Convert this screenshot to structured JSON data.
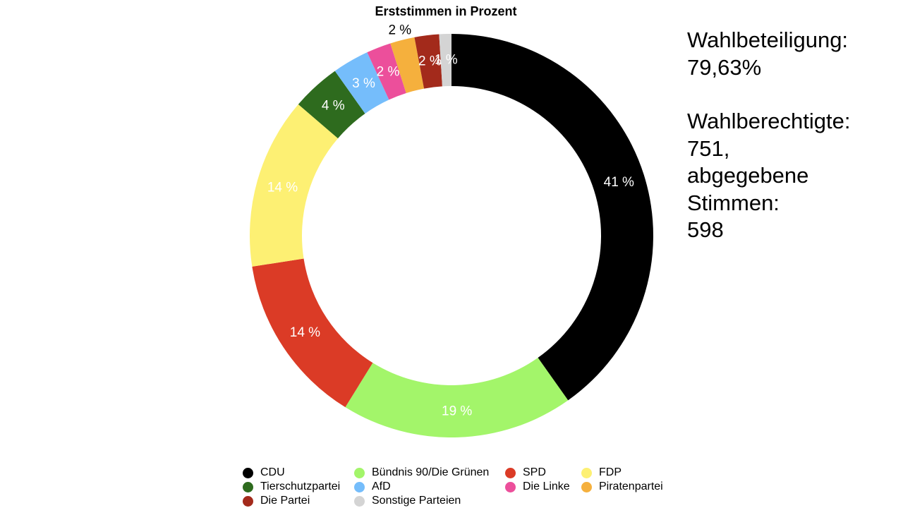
{
  "chart_data": {
    "type": "pie",
    "variant": "donut",
    "title": "Erststimmen in Prozent",
    "value_unit": "%",
    "slices": [
      {
        "name": "CDU",
        "value": 41,
        "label": "41 %",
        "color": "#000000",
        "label_color": "#ffffff"
      },
      {
        "name": "Bündnis 90/Die Grünen",
        "value": 19,
        "label": "19 %",
        "color": "#a3f56a",
        "label_color": "#ffffff"
      },
      {
        "name": "SPD",
        "value": 14,
        "label": "14 %",
        "color": "#db3b26",
        "label_color": "#ffffff"
      },
      {
        "name": "FDP",
        "value": 14,
        "label": "14 %",
        "color": "#fdf073",
        "label_color": "#ffffff"
      },
      {
        "name": "Tierschutzpartei",
        "value": 4,
        "label": "4 %",
        "color": "#2e6b1e",
        "label_color": "#ffffff"
      },
      {
        "name": "AfD",
        "value": 3,
        "label": "3 %",
        "color": "#75bdfb",
        "label_color": "#ffffff"
      },
      {
        "name": "Die Linke",
        "value": 2,
        "label": "2 %",
        "color": "#ec4f9b",
        "label_color": "#ffffff"
      },
      {
        "name": "Piratenpartei",
        "value": 2,
        "label": "2 %",
        "color": "#f5b03d",
        "label_color": "#000000"
      },
      {
        "name": "Die Partei",
        "value": 2,
        "label": "2 %",
        "color": "#a32a1b",
        "label_color": "#ffffff"
      },
      {
        "name": "Sonstige Parteien",
        "value": 1,
        "label": "1 %",
        "color": "#d4d4d4",
        "label_color": "#ffffff"
      }
    ],
    "legend": {
      "placement": "bottom",
      "order": [
        "CDU",
        "Bündnis 90/Die Grünen",
        "SPD",
        "FDP",
        "Tierschutzpartei",
        "AfD",
        "Die Linke",
        "Piratenpartei",
        "Die Partei",
        "Sonstige Parteien"
      ]
    }
  },
  "info": {
    "turnout_label": "Wahlbeteiligung:",
    "turnout_value": "79,63%",
    "eligible_label": "Wahlberechtigte:",
    "eligible_value": "751,",
    "votes_label_1": "abgegebene",
    "votes_label_2": "Stimmen:",
    "votes_value": "598"
  }
}
